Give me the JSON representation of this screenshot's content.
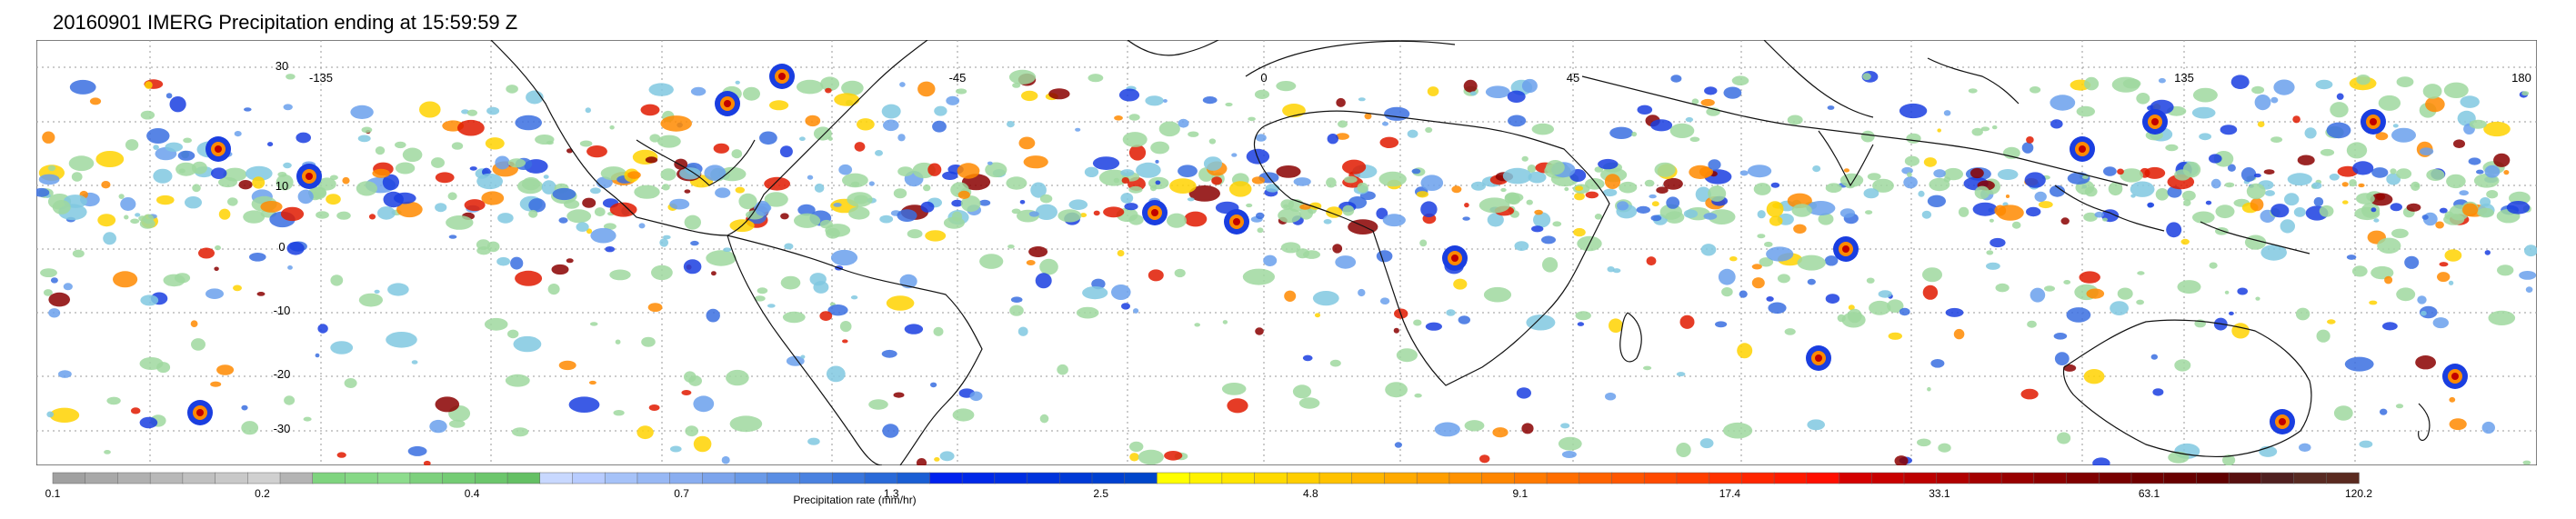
{
  "title": "20160901 IMERG Precipitation ending at 15:59:59 Z",
  "map": {
    "lon_labels": [
      "-135",
      "-45",
      "0",
      "45",
      "135",
      "180"
    ],
    "lat_labels": [
      "30",
      "10",
      "0",
      "-10",
      "-20",
      "-30"
    ],
    "grid": true
  },
  "legend": {
    "label": "Precipitation rate (mm/hr)",
    "tick_labels": [
      "0.1",
      "0.2",
      "0.4",
      "0.7",
      "1.3",
      "2.5",
      "4.8",
      "9.1",
      "17.4",
      "33.1",
      "63.1",
      "120.2"
    ],
    "groups": [
      {
        "colors": [
          "#a0a0a0",
          "#a8a8a8",
          "#b0b0b0",
          "#b8b8b8",
          "#c0c0c0",
          "#c8c8c8",
          "#d0d0d0",
          "#b4b4b4"
        ]
      },
      {
        "colors": [
          "#7fd47f",
          "#86d886",
          "#8ddc8d",
          "#7dd07d",
          "#74cc74",
          "#6cc66c",
          "#64c064"
        ]
      },
      {
        "colors": [
          "#c8d8ff",
          "#b8ccff",
          "#a6c2f8",
          "#98b8f4",
          "#8aaef0",
          "#7ca4ec",
          "#6a9ae8",
          "#5a8ee4",
          "#4a82e0",
          "#3a76dc",
          "#2a6ad8",
          "#1a5ed4"
        ]
      },
      {
        "colors": [
          "#0022ee",
          "#0028e8",
          "#002ee2",
          "#0034dc",
          "#003ad6",
          "#0040d0",
          "#0046ca"
        ]
      },
      {
        "colors": [
          "#ffff00",
          "#fff200",
          "#ffe600",
          "#ffda00",
          "#ffce00",
          "#ffc200",
          "#ffb600",
          "#ffaa00",
          "#ff9e00",
          "#ff9200",
          "#ff8600",
          "#ff7a00",
          "#ff6e00",
          "#ff6200",
          "#ff5600",
          "#ff4a00",
          "#ff3e00",
          "#ff3200",
          "#ff2600",
          "#ff1a00",
          "#ff0e00"
        ]
      },
      {
        "colors": [
          "#d40000",
          "#c80000",
          "#bc0000",
          "#b00000",
          "#a40000",
          "#980000",
          "#8c0000",
          "#800000",
          "#780000",
          "#700000",
          "#680000",
          "#600000",
          "#581010",
          "#502020",
          "#582a22",
          "#5a2a20"
        ]
      }
    ]
  }
}
